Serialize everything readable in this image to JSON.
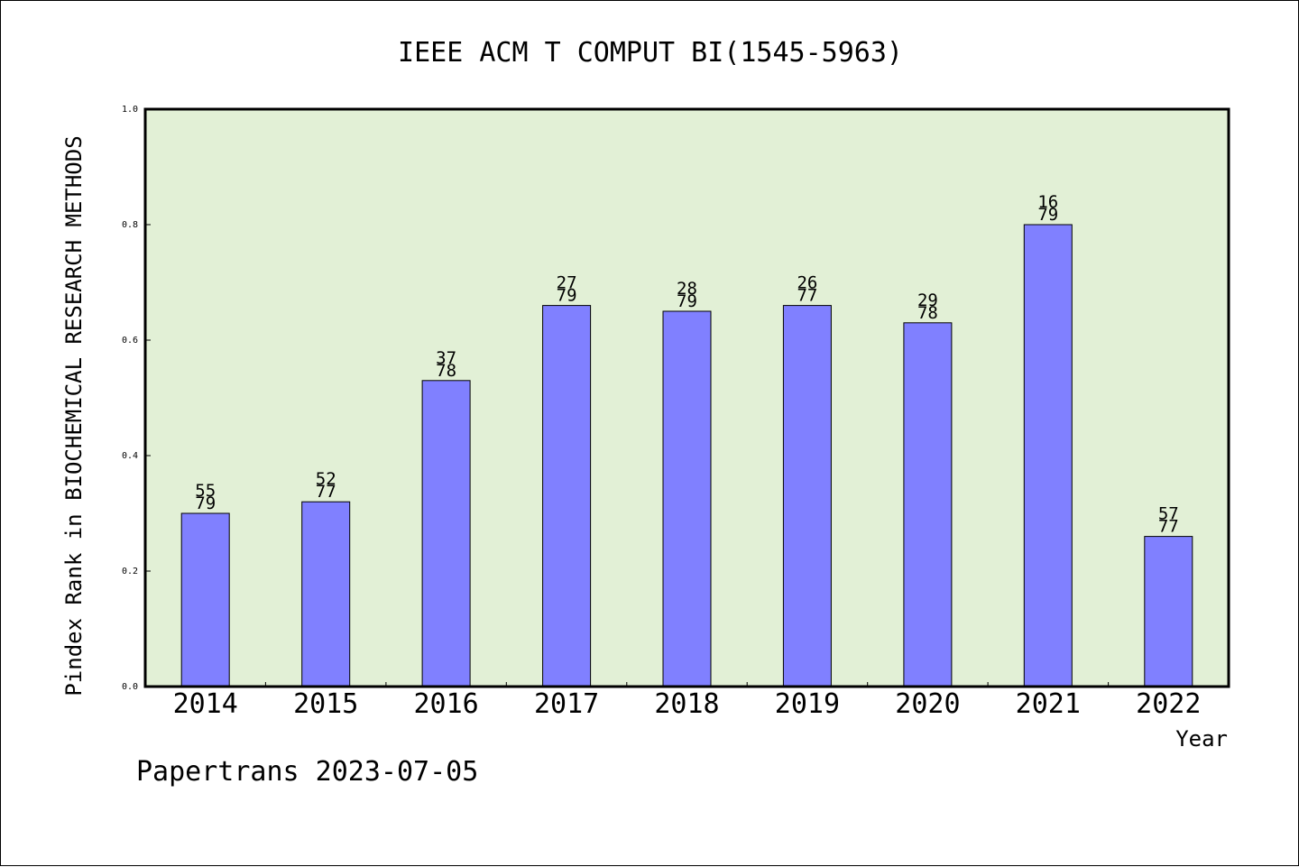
{
  "chart_data": {
    "type": "bar",
    "title": "IEEE ACM T COMPUT BI(1545-5963)",
    "xlabel": "Year",
    "ylabel": "Pindex Rank in BIOCHEMICAL RESEARCH METHODS",
    "ylim": [
      0,
      1.0
    ],
    "yticks": [
      "0.0",
      "0.2",
      "0.4",
      "0.6",
      "0.8",
      "1.0"
    ],
    "categories": [
      "2014",
      "2015",
      "2016",
      "2017",
      "2018",
      "2019",
      "2020",
      "2021",
      "2022"
    ],
    "values": [
      0.3,
      0.32,
      0.53,
      0.66,
      0.65,
      0.66,
      0.63,
      0.8,
      0.26
    ],
    "labels_top": [
      "55",
      "52",
      "37",
      "27",
      "28",
      "26",
      "29",
      "16",
      "57"
    ],
    "labels_bottom": [
      "79",
      "77",
      "78",
      "79",
      "79",
      "77",
      "78",
      "79",
      "77"
    ],
    "grid": false,
    "colors": {
      "plot_background": "#e2f0d6",
      "bar_fill": "#8080ff",
      "bar_stroke": "#000000"
    }
  },
  "footer": {
    "credit": "Papertrans 2023-07-05"
  }
}
